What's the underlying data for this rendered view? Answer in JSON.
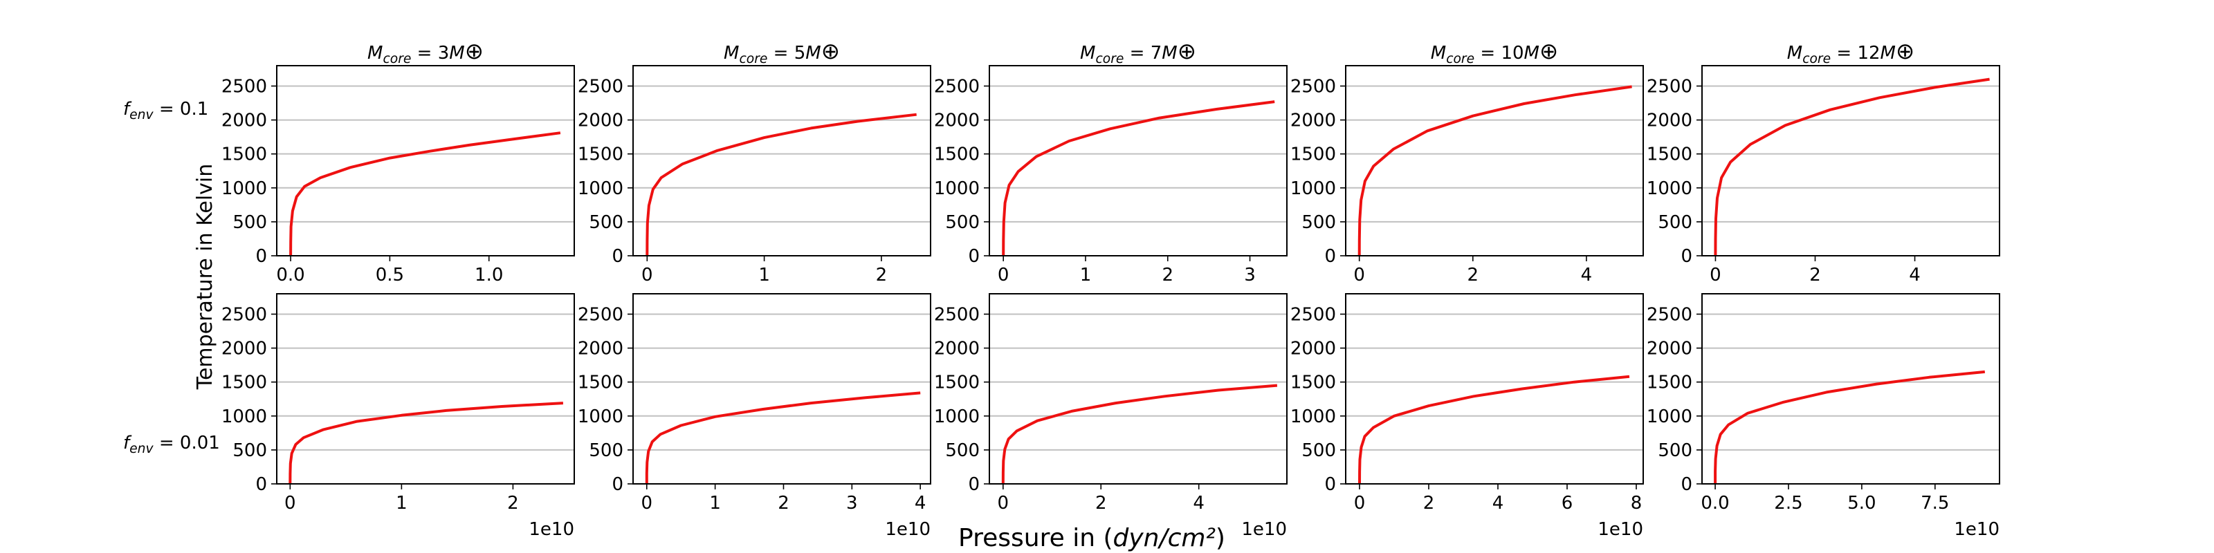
{
  "figure": {
    "xlabel": "Pressure in (dyn/cm²)",
    "ylabel": "Temperature in Kelvin",
    "x_offset_text": "1e10",
    "row_labels": [
      "f_env = 0.1",
      "f_env = 0.01"
    ]
  },
  "colors": {
    "line": "#ee1111",
    "grid": "#c0c0c0",
    "axes": "#000000"
  },
  "chart_data": [
    {
      "type": "line",
      "row": 0,
      "col": 0,
      "title": "M_core = 3M⊕",
      "ylim": [
        0,
        2800
      ],
      "yticks": [
        0,
        500,
        1000,
        1500,
        2000,
        2500
      ],
      "xlim": [
        -0.07,
        1.43
      ],
      "xticks": [
        0.0,
        0.5,
        1.0
      ],
      "xtick_labels": [
        "0.0",
        "0.5",
        "1.0"
      ],
      "x_scale": "1e10",
      "series": [
        {
          "x": [
            0,
            0.0003,
            0.002,
            0.01,
            0.03,
            0.07,
            0.15,
            0.3,
            0.5,
            0.7,
            0.9,
            1.1,
            1.36
          ],
          "y": [
            0,
            200,
            430,
            660,
            870,
            1020,
            1150,
            1300,
            1440,
            1540,
            1630,
            1710,
            1810
          ]
        }
      ]
    },
    {
      "type": "line",
      "row": 0,
      "col": 1,
      "title": "M_core = 5M⊕",
      "ylim": [
        0,
        2800
      ],
      "yticks": [
        0,
        500,
        1000,
        1500,
        2000,
        2500
      ],
      "xlim": [
        -0.12,
        2.42
      ],
      "xticks": [
        0,
        1,
        2
      ],
      "xtick_labels": [
        "0",
        "1",
        "2"
      ],
      "x_scale": "1e10",
      "series": [
        {
          "x": [
            0,
            0.0005,
            0.003,
            0.015,
            0.05,
            0.12,
            0.3,
            0.6,
            1.0,
            1.4,
            1.8,
            2.3
          ],
          "y": [
            0,
            220,
            480,
            740,
            980,
            1150,
            1350,
            1550,
            1740,
            1880,
            1980,
            2080
          ]
        }
      ]
    },
    {
      "type": "line",
      "row": 0,
      "col": 2,
      "title": "M_core = 7M⊕",
      "ylim": [
        0,
        2800
      ],
      "yticks": [
        0,
        500,
        1000,
        1500,
        2000,
        2500
      ],
      "xlim": [
        -0.17,
        3.45
      ],
      "xticks": [
        0,
        1,
        2,
        3
      ],
      "xtick_labels": [
        "0",
        "1",
        "2",
        "3"
      ],
      "x_scale": "1e10",
      "series": [
        {
          "x": [
            0,
            0.0008,
            0.005,
            0.02,
            0.07,
            0.18,
            0.4,
            0.8,
            1.3,
            1.9,
            2.6,
            3.3
          ],
          "y": [
            0,
            230,
            500,
            780,
            1040,
            1240,
            1460,
            1690,
            1870,
            2030,
            2160,
            2270
          ]
        }
      ]
    },
    {
      "type": "line",
      "row": 0,
      "col": 3,
      "title": "M_core = 10M⊕",
      "ylim": [
        0,
        2800
      ],
      "yticks": [
        0,
        500,
        1000,
        1500,
        2000,
        2500
      ],
      "xlim": [
        -0.24,
        5.0
      ],
      "xticks": [
        0,
        2,
        4
      ],
      "xtick_labels": [
        "0",
        "2",
        "4"
      ],
      "x_scale": "1e10",
      "series": [
        {
          "x": [
            0,
            0.001,
            0.007,
            0.03,
            0.1,
            0.25,
            0.6,
            1.2,
            2.0,
            2.9,
            3.8,
            4.8
          ],
          "y": [
            0,
            240,
            530,
            820,
            1100,
            1320,
            1570,
            1840,
            2060,
            2240,
            2370,
            2490
          ]
        }
      ]
    },
    {
      "type": "line",
      "row": 0,
      "col": 4,
      "title": "M_core = 12M⊕",
      "ylim": [
        0,
        2800
      ],
      "yticks": [
        0,
        500,
        1000,
        1500,
        2000,
        2500
      ],
      "xlim": [
        -0.27,
        5.7
      ],
      "xticks": [
        0,
        2,
        4
      ],
      "xtick_labels": [
        "0",
        "2",
        "4"
      ],
      "x_scale": "1e10",
      "series": [
        {
          "x": [
            0,
            0.0012,
            0.008,
            0.035,
            0.12,
            0.3,
            0.7,
            1.4,
            2.3,
            3.3,
            4.4,
            5.5
          ],
          "y": [
            0,
            250,
            550,
            850,
            1150,
            1380,
            1640,
            1920,
            2150,
            2330,
            2480,
            2600
          ]
        }
      ]
    },
    {
      "type": "line",
      "row": 1,
      "col": 0,
      "title": "",
      "ylim": [
        0,
        2800
      ],
      "yticks": [
        0,
        500,
        1000,
        1500,
        2000,
        2500
      ],
      "xlim": [
        -0.12,
        2.55
      ],
      "xticks": [
        0,
        1,
        2
      ],
      "xtick_labels": [
        "0",
        "1",
        "2"
      ],
      "x_scale": "1e10",
      "series": [
        {
          "x": [
            0,
            0.0005,
            0.003,
            0.015,
            0.05,
            0.12,
            0.3,
            0.6,
            1.0,
            1.4,
            1.9,
            2.45
          ],
          "y": [
            0,
            150,
            300,
            450,
            580,
            680,
            800,
            920,
            1010,
            1080,
            1140,
            1190
          ]
        }
      ]
    },
    {
      "type": "line",
      "row": 1,
      "col": 1,
      "title": "",
      "ylim": [
        0,
        2800
      ],
      "yticks": [
        0,
        500,
        1000,
        1500,
        2000,
        2500
      ],
      "xlim": [
        -0.2,
        4.15
      ],
      "xticks": [
        0,
        1,
        2,
        3,
        4
      ],
      "xtick_labels": [
        "0",
        "1",
        "2",
        "3",
        "4"
      ],
      "x_scale": "1e10",
      "series": [
        {
          "x": [
            0,
            0.0008,
            0.005,
            0.025,
            0.08,
            0.2,
            0.5,
            1.0,
            1.7,
            2.4,
            3.2,
            4.0
          ],
          "y": [
            0,
            160,
            320,
            480,
            620,
            730,
            860,
            990,
            1100,
            1190,
            1270,
            1340
          ]
        }
      ]
    },
    {
      "type": "line",
      "row": 1,
      "col": 2,
      "title": "",
      "ylim": [
        0,
        2800
      ],
      "yticks": [
        0,
        500,
        1000,
        1500,
        2000,
        2500
      ],
      "xlim": [
        -0.28,
        5.8
      ],
      "xticks": [
        0,
        2,
        4
      ],
      "xtick_labels": [
        "0",
        "2",
        "4"
      ],
      "x_scale": "1e10",
      "series": [
        {
          "x": [
            0,
            0.001,
            0.007,
            0.035,
            0.11,
            0.28,
            0.7,
            1.4,
            2.3,
            3.3,
            4.4,
            5.6
          ],
          "y": [
            0,
            170,
            340,
            510,
            660,
            780,
            930,
            1070,
            1190,
            1290,
            1380,
            1450
          ]
        }
      ]
    },
    {
      "type": "line",
      "row": 1,
      "col": 3,
      "title": "",
      "ylim": [
        0,
        2800
      ],
      "yticks": [
        0,
        500,
        1000,
        1500,
        2000,
        2500
      ],
      "xlim": [
        -0.4,
        8.2
      ],
      "xticks": [
        0,
        2,
        4,
        6,
        8
      ],
      "xtick_labels": [
        "0",
        "2",
        "4",
        "6",
        "8"
      ],
      "x_scale": "1e10",
      "series": [
        {
          "x": [
            0,
            0.0015,
            0.01,
            0.05,
            0.15,
            0.4,
            1.0,
            2.0,
            3.3,
            4.7,
            6.2,
            7.8
          ],
          "y": [
            0,
            180,
            360,
            540,
            700,
            830,
            1000,
            1150,
            1290,
            1400,
            1500,
            1580
          ]
        }
      ]
    },
    {
      "type": "line",
      "row": 1,
      "col": 4,
      "title": "",
      "ylim": [
        0,
        2800
      ],
      "yticks": [
        0,
        500,
        1000,
        1500,
        2000,
        2500
      ],
      "xlim": [
        -0.45,
        9.7
      ],
      "xticks": [
        0,
        2.5,
        5,
        7.5
      ],
      "xtick_labels": [
        "0.0",
        "2.5",
        "5.0",
        "7.5"
      ],
      "x_scale": "1e10",
      "series": [
        {
          "x": [
            0,
            0.002,
            0.012,
            0.06,
            0.18,
            0.45,
            1.1,
            2.3,
            3.8,
            5.5,
            7.3,
            9.2
          ],
          "y": [
            0,
            185,
            370,
            560,
            730,
            870,
            1040,
            1200,
            1350,
            1470,
            1570,
            1650
          ]
        }
      ]
    }
  ]
}
